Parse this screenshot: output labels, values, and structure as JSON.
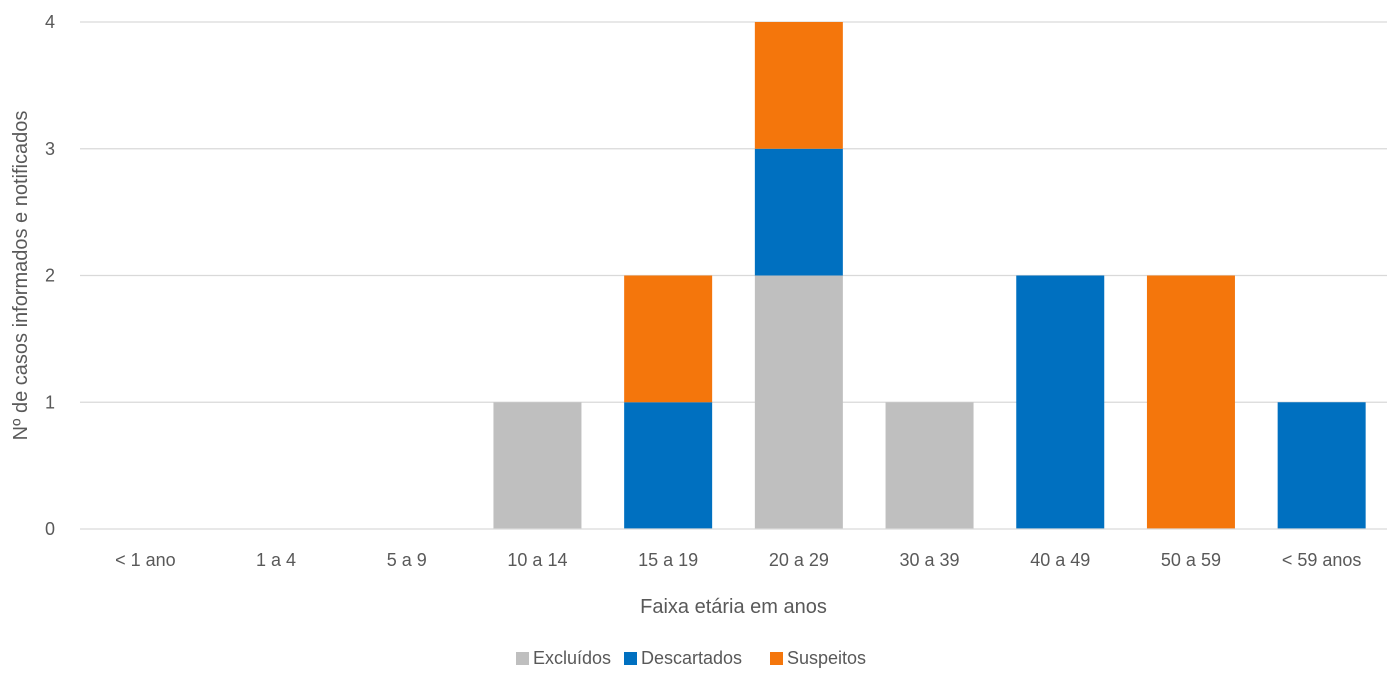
{
  "chart_data": {
    "type": "bar",
    "stacked": true,
    "title": "",
    "xlabel": "Faixa etária em anos",
    "ylabel": "Nº de casos informados e notificados",
    "categories": [
      "< 1 ano",
      "1 a 4",
      "5 a 9",
      "10 a 14",
      "15 a 19",
      "20 a 29",
      "30 a 39",
      "40 a 49",
      "50 a 59",
      "< 59 anos"
    ],
    "ylim": [
      0,
      4
    ],
    "yticks": [
      "0",
      "1",
      "2",
      "3",
      "4"
    ],
    "grid": true,
    "legend_position": "bottom",
    "series": [
      {
        "name": "Excluídos",
        "color": "#bfbfbf",
        "values": [
          0,
          0,
          0,
          1,
          0,
          2,
          1,
          0,
          0,
          0
        ]
      },
      {
        "name": "Descartados",
        "color": "#0070c0",
        "values": [
          0,
          0,
          0,
          0,
          1,
          1,
          0,
          2,
          0,
          1
        ]
      },
      {
        "name": "Suspeitos",
        "color": "#f4760c",
        "values": [
          0,
          0,
          0,
          0,
          1,
          1,
          0,
          0,
          2,
          0
        ]
      }
    ]
  }
}
